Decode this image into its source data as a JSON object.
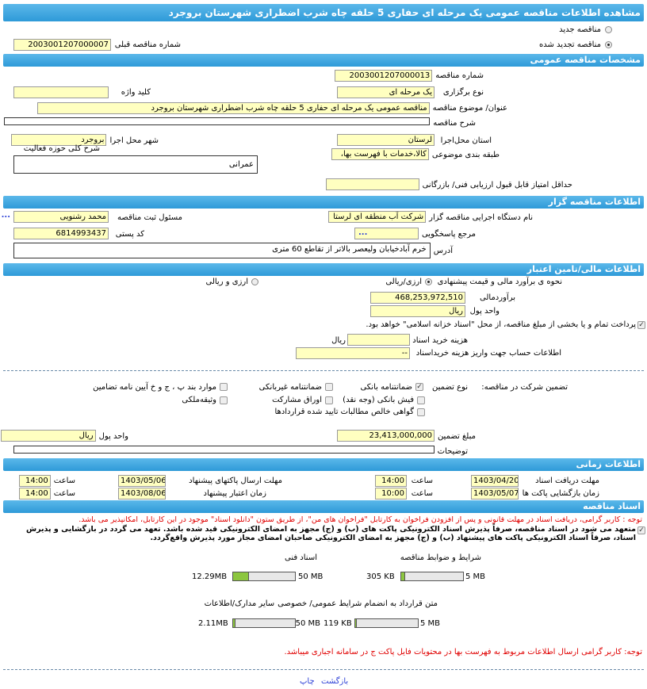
{
  "title": "مشاهده اطلاعات مناقصه عمومی یک مرحله ای حفاری 5 حلقه چاه شرب اضطراری شهرستان بروجرد",
  "tender_type": {
    "new_label": "مناقصه جدید",
    "renewed_label": "مناقصه تجدید شده",
    "selected": "renewed",
    "prev_number_label": "شماره مناقصه قبلی",
    "prev_number": "2003001207000007"
  },
  "general": {
    "header": "مشخصات مناقصه عمومی",
    "number_label": "شماره مناقصه",
    "number": "2003001207000013",
    "holding_type_label": "نوع برگزاری",
    "holding_type": "یک مرحله ای",
    "keyword_label": "کلید واژه",
    "keyword": "",
    "subject_label": "عنوان/ موضوع مناقصه",
    "subject": "مناقصه عمومی یک مرحله ای حفاری 5 حلقه چاه شرب اضطراری شهرستان بروجرد",
    "description_label": "شرح مناقصه",
    "description": "",
    "province_label": "استان محل‌اجرا",
    "province": "لرستان",
    "city_label": "شهر محل اجرا",
    "city": "بروجرد",
    "category_label": "طبقه بندی موضوعی",
    "category": "کالا،خدمات با فهرست بها،",
    "activity_label": "شرح کلی حوزه فعالیت",
    "activity": "عمرانی",
    "min_score_label": "حداقل امتیاز قابل قبول ارزیابی فنی/ بازرگانی",
    "min_score": ""
  },
  "organizer": {
    "header": "اطلاعات مناقصه گزار",
    "org_label": "نام دستگاه اجرایی مناقصه گزار",
    "org": "شرکت آب منطقه ای لرستا",
    "registrar_label": "مسئول ثبت مناقصه",
    "registrar": "محمد رشنویی",
    "ref_label": "مرجع پاسخگویی",
    "ref": "",
    "postal_label": "کد پستی",
    "postal": "6814993437",
    "address_label": "آدرس",
    "address": "خرم آبادخیابان ولیعصر بالاتر از تقاطع 60 متری",
    "more": "..."
  },
  "finance": {
    "header": "اطلاعات مالی/تامین اعتبار",
    "method_label": "نحوه ی برآورد مالی و قیمت پیشنهادی",
    "opt1": "ارزی/ریالی",
    "opt2": "ارزی و ریالی",
    "selected": "opt1",
    "estimate_label": "برآوردمالی",
    "estimate": "468,253,972,510",
    "currency_label": "واحد پول",
    "currency": "ریال",
    "treasury_text": "پرداخت تمام و یا بخشی از مبلغ مناقصه، از محل \"اسناد خزانه اسلامی\" خواهد بود.",
    "treasury_checked": true,
    "doc_cost_label": "هزینه خرید اسناد",
    "doc_cost": "",
    "doc_cost_unit": "ریال",
    "account_label": "اطلاعات حساب جهت واریز هزینه خریداسناد",
    "account": "--"
  },
  "guarantee": {
    "label": "تضمین شرکت در مناقصه:",
    "type_label": "نوع تضمین",
    "options": [
      {
        "label": "ضمانتنامه بانکی",
        "checked": true
      },
      {
        "label": "ضمانتنامه غیربانکی",
        "checked": false
      },
      {
        "label": "موارد بند پ ، ج و خ آیین نامه تضامین",
        "checked": false
      },
      {
        "label": "فیش بانکی (وجه نقد)",
        "checked": false
      },
      {
        "label": "اوراق مشارکت",
        "checked": false
      },
      {
        "label": "وثیقه‌ملکی",
        "checked": false
      },
      {
        "label": "گواهی خالص مطالبات تایید شده قراردادها",
        "checked": false
      }
    ],
    "amount_label": "مبلغ تضمین",
    "amount": "23,413,000,000",
    "currency_label": "واحد پول",
    "currency": "ریال",
    "notes_label": "توضیحات",
    "notes": ""
  },
  "timing": {
    "header": "اطلاعات زمانی",
    "receive_label": "مهلت دریافت اسناد",
    "receive_date": "1403/04/20",
    "receive_time": "14:00",
    "submit_label": "مهلت ارسال پاکتهای پیشنهاد",
    "submit_date": "1403/05/06",
    "submit_time": "14:00",
    "open_label": "زمان بازگشایی پاکت ها",
    "open_date": "1403/05/07",
    "open_time": "10:00",
    "valid_label": "زمان اعتبار پیشنهاد",
    "valid_date": "1403/08/06",
    "valid_time": "14:00",
    "time_label": "ساعت"
  },
  "docs": {
    "header": "اسناد مناقصه",
    "note1": "توجه : کاربر گرامی، دریافت اسناد در مهلت قانونی و پس از افزودن فراخوان به کارتابل \"فراخوان های من\"، از طریق ستون \"دانلود اسناد\" موجود در این کارتابل، امکانپذیر می باشد.",
    "commit": "متعهد می شود در اسناد مناقصه، صرفاً پذیرش اسناد الکترونیکی پاکت های (ب) و (ج) مجهز به امضای الکترونیکی قید شده باشد. تعهد می گردد در بازگشایی و پذیرش اسناد، صرفاً اسناد الکترونیکی پاکت های پیشنهاد (ب) و (ج) مجهز به امضای الکترونیکی صاحبان امضای مجاز مورد پذیرش واقع‌گردد.",
    "files": [
      {
        "label": "شرایط و ضوابط مناقصه",
        "size": "305 KB",
        "max": "5 MB",
        "fraction": 0.06
      },
      {
        "label": "اسناد فنی",
        "size": "12.29MB",
        "max": "50 MB",
        "fraction": 0.25
      },
      {
        "label": "متن قرارداد به انضمام شرایط عمومی/ خصوصی",
        "size": "119 KB",
        "max": "5 MB",
        "fraction": 0.03
      },
      {
        "label": "سایر مدارک/اطلاعات",
        "size": "2.11MB",
        "max": "50 MB",
        "fraction": 0.04
      }
    ],
    "note2": "توجه: کاربر گرامی ارسال اطلاعات مربوط به فهرست بها در محتویات فایل پاکت ج در سامانه اجباری میباشد."
  },
  "footer": {
    "print": "چاپ",
    "back": "بازگشت"
  },
  "colors": {
    "header": "#3aa8e0",
    "input": "#ffffc0",
    "note": "#e00000",
    "link": "#2b3fd6",
    "bar_fill": "#8cc63f"
  }
}
